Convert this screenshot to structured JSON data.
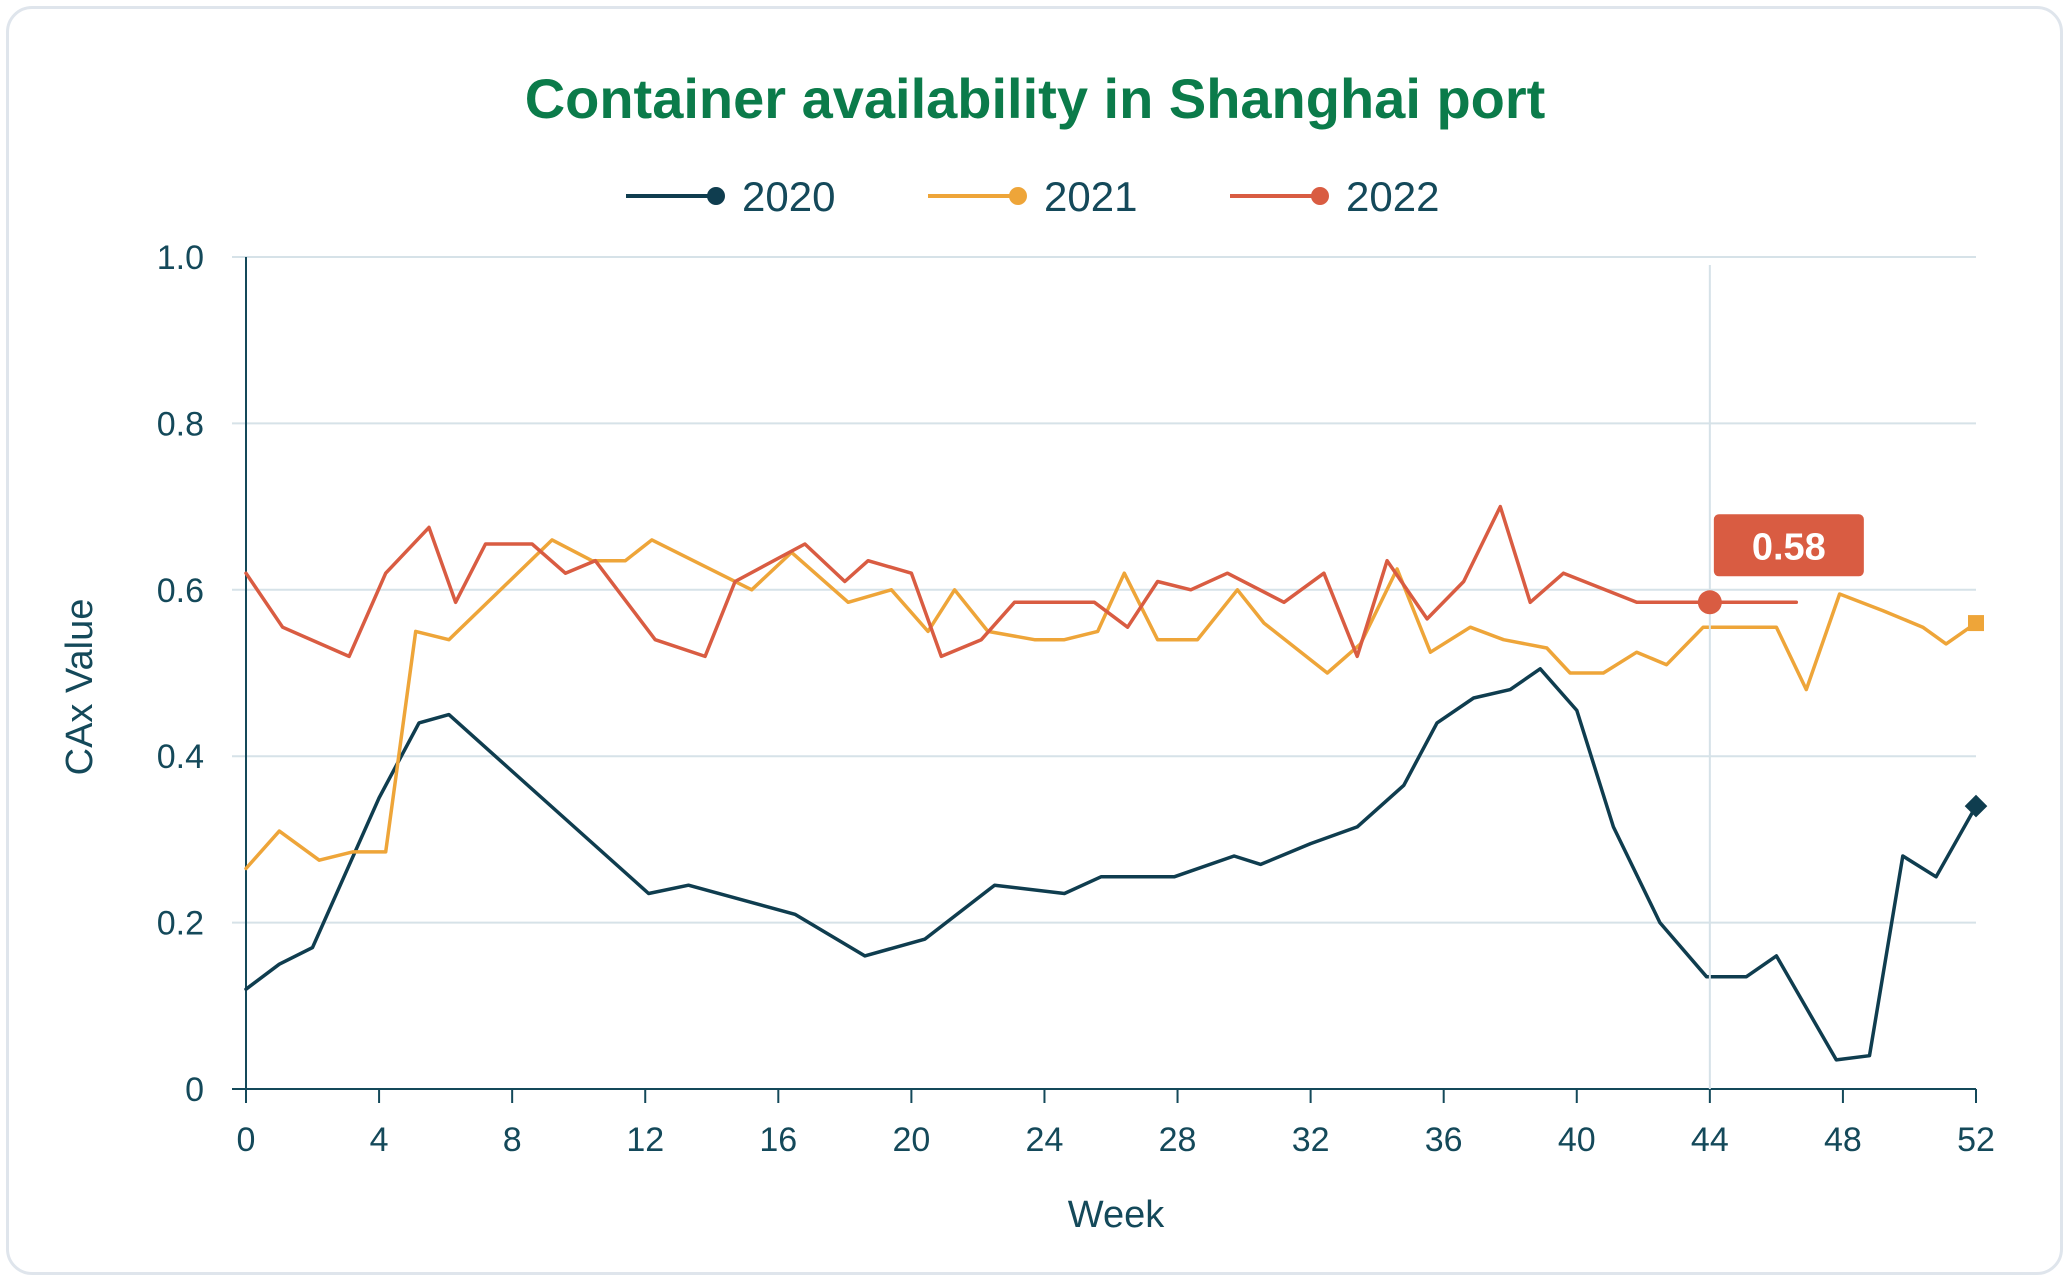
{
  "chart_data": {
    "type": "line",
    "title": "Container availability in Shanghai port",
    "xlabel": "Week",
    "ylabel": "CAx Value",
    "xlim": [
      0,
      52
    ],
    "ylim": [
      0,
      1.0
    ],
    "x_ticks": [
      0,
      4,
      8,
      12,
      16,
      20,
      24,
      28,
      32,
      36,
      40,
      44,
      48,
      52
    ],
    "x_tick_labels": [
      "0",
      "4",
      "8",
      "12",
      "16",
      "20",
      "24",
      "28",
      "32",
      "36",
      "40",
      "44",
      "48",
      "52"
    ],
    "y_ticks": [
      0,
      0.2,
      0.4,
      0.6,
      0.8,
      1.0
    ],
    "y_tick_labels": [
      "0",
      "0.2",
      "0.4",
      "0.6",
      "0.8",
      "1.0"
    ],
    "grid": true,
    "legend_position": "top-center",
    "series": [
      {
        "name": "2020",
        "color": "#0f3d4f",
        "marker": "circle",
        "end_marker": "diamond",
        "points": [
          [
            0,
            0.12
          ],
          [
            1,
            0.15
          ],
          [
            2,
            0.17
          ],
          [
            3,
            0.26
          ],
          [
            4,
            0.35
          ],
          [
            5.2,
            0.44
          ],
          [
            6.1,
            0.45
          ],
          [
            12.1,
            0.235
          ],
          [
            13.3,
            0.245
          ],
          [
            16.5,
            0.21
          ],
          [
            18.6,
            0.16
          ],
          [
            20.4,
            0.18
          ],
          [
            22.5,
            0.245
          ],
          [
            24.6,
            0.235
          ],
          [
            25.7,
            0.255
          ],
          [
            27.9,
            0.255
          ],
          [
            29.7,
            0.28
          ],
          [
            30.5,
            0.27
          ],
          [
            32,
            0.295
          ],
          [
            33.4,
            0.315
          ],
          [
            34.8,
            0.365
          ],
          [
            35.8,
            0.44
          ],
          [
            36.9,
            0.47
          ],
          [
            38,
            0.48
          ],
          [
            38.9,
            0.505
          ],
          [
            40,
            0.455
          ],
          [
            41.1,
            0.315
          ],
          [
            42.5,
            0.2
          ],
          [
            43.9,
            0.135
          ],
          [
            45.1,
            0.135
          ],
          [
            46,
            0.16
          ],
          [
            47.8,
            0.035
          ],
          [
            48.8,
            0.04
          ],
          [
            49.8,
            0.28
          ],
          [
            50.8,
            0.255
          ],
          [
            52,
            0.34
          ]
        ]
      },
      {
        "name": "2021",
        "color": "#eea539",
        "marker": "circle",
        "end_marker": "square",
        "points": [
          [
            0,
            0.265
          ],
          [
            1,
            0.31
          ],
          [
            2.2,
            0.275
          ],
          [
            3.2,
            0.285
          ],
          [
            4.2,
            0.285
          ],
          [
            5.1,
            0.55
          ],
          [
            6.1,
            0.54
          ],
          [
            9.2,
            0.66
          ],
          [
            10.4,
            0.635
          ],
          [
            11.4,
            0.635
          ],
          [
            12.2,
            0.66
          ],
          [
            15.2,
            0.6
          ],
          [
            16.4,
            0.645
          ],
          [
            18.1,
            0.585
          ],
          [
            19.4,
            0.6
          ],
          [
            20.5,
            0.55
          ],
          [
            21.3,
            0.6
          ],
          [
            22.3,
            0.55
          ],
          [
            23.7,
            0.54
          ],
          [
            24.6,
            0.54
          ],
          [
            25.6,
            0.55
          ],
          [
            26.4,
            0.62
          ],
          [
            27.4,
            0.54
          ],
          [
            28.6,
            0.54
          ],
          [
            29.8,
            0.6
          ],
          [
            30.6,
            0.56
          ],
          [
            32.5,
            0.5
          ],
          [
            33.5,
            0.535
          ],
          [
            34.6,
            0.625
          ],
          [
            35.6,
            0.525
          ],
          [
            36.8,
            0.555
          ],
          [
            37.8,
            0.54
          ],
          [
            39.1,
            0.53
          ],
          [
            39.8,
            0.5
          ],
          [
            40.8,
            0.5
          ],
          [
            41.8,
            0.525
          ],
          [
            42.7,
            0.51
          ],
          [
            43.8,
            0.555
          ],
          [
            46,
            0.555
          ],
          [
            46.9,
            0.48
          ],
          [
            47.9,
            0.595
          ],
          [
            49.2,
            0.575
          ],
          [
            50.4,
            0.555
          ],
          [
            51.1,
            0.535
          ],
          [
            52,
            0.56
          ]
        ]
      },
      {
        "name": "2022",
        "color": "#d95c42",
        "marker": "circle",
        "points": [
          [
            0,
            0.62
          ],
          [
            1.1,
            0.555
          ],
          [
            3.1,
            0.52
          ],
          [
            4.2,
            0.62
          ],
          [
            5.5,
            0.675
          ],
          [
            6.3,
            0.585
          ],
          [
            7.2,
            0.655
          ],
          [
            8.6,
            0.655
          ],
          [
            9.6,
            0.62
          ],
          [
            10.5,
            0.635
          ],
          [
            12.3,
            0.54
          ],
          [
            13.8,
            0.52
          ],
          [
            14.7,
            0.61
          ],
          [
            16.8,
            0.655
          ],
          [
            18,
            0.61
          ],
          [
            18.7,
            0.635
          ],
          [
            20,
            0.62
          ],
          [
            20.9,
            0.52
          ],
          [
            22.1,
            0.54
          ],
          [
            23.1,
            0.585
          ],
          [
            25.5,
            0.585
          ],
          [
            26.5,
            0.555
          ],
          [
            27.4,
            0.61
          ],
          [
            28.4,
            0.6
          ],
          [
            29.5,
            0.62
          ],
          [
            31.2,
            0.585
          ],
          [
            32.4,
            0.62
          ],
          [
            33.4,
            0.52
          ],
          [
            34.3,
            0.635
          ],
          [
            35.5,
            0.565
          ],
          [
            36.6,
            0.61
          ],
          [
            37.7,
            0.7
          ],
          [
            38.6,
            0.585
          ],
          [
            39.6,
            0.62
          ],
          [
            41.8,
            0.585
          ],
          [
            44,
            0.585
          ],
          [
            46.6,
            0.585
          ]
        ]
      }
    ],
    "highlight": {
      "series": "2022",
      "x": 44,
      "y": 0.585,
      "label": "0.58"
    }
  }
}
